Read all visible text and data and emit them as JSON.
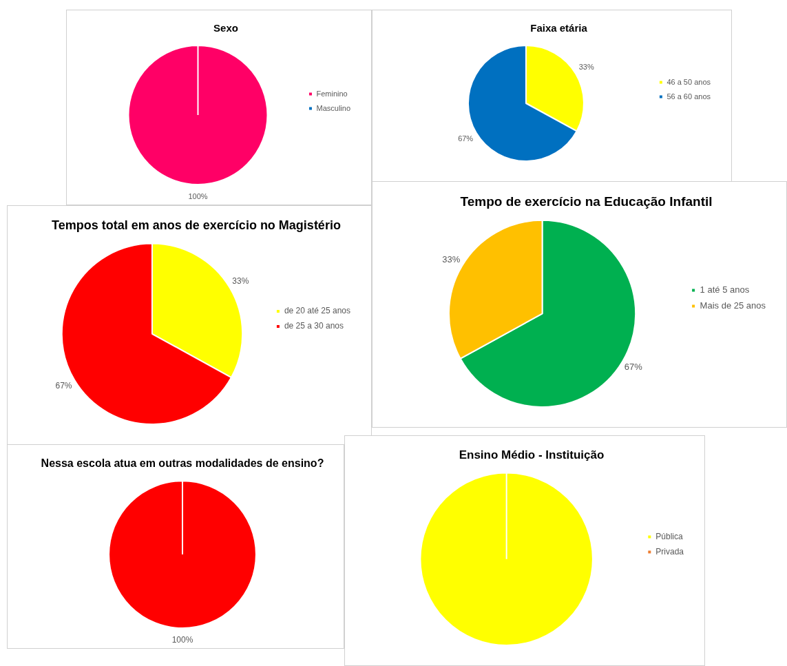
{
  "chart_data": [
    {
      "type": "pie",
      "title": "Sexo",
      "categories": [
        "Feminino",
        "Masculino"
      ],
      "values": [
        100,
        0
      ],
      "colors": [
        "#ff0066",
        "#0070c0"
      ],
      "value_labels": [
        "100%",
        null
      ],
      "legend": "right"
    },
    {
      "type": "pie",
      "title": "Faixa etária",
      "categories": [
        "46 a 50 anos",
        "56 a 60 anos"
      ],
      "values": [
        33,
        67
      ],
      "colors": [
        "#ffff00",
        "#0070c0"
      ],
      "value_labels": [
        "33%",
        "67%"
      ],
      "legend": "right"
    },
    {
      "type": "pie",
      "title": "Tempos total em anos de exercício no Magistério",
      "categories": [
        "de 20 até 25 anos",
        "de 25 a 30 anos"
      ],
      "values": [
        33,
        67
      ],
      "colors": [
        "#ffff00",
        "#ff0000"
      ],
      "value_labels": [
        "33%",
        "67%"
      ],
      "legend": "right"
    },
    {
      "type": "pie",
      "title": "Tempo de exercício na Educação Infantil",
      "categories": [
        "1 até 5 anos",
        "Mais de 25 anos"
      ],
      "values": [
        67,
        33
      ],
      "colors": [
        "#00b050",
        "#ffc000"
      ],
      "value_labels": [
        "67%",
        "33%"
      ],
      "legend": "right"
    },
    {
      "type": "pie",
      "title": "Nessa escola atua em outras modalidades de ensino?",
      "categories": [
        null
      ],
      "values": [
        100
      ],
      "colors": [
        "#ff0000"
      ],
      "value_labels": [
        "100%"
      ]
    },
    {
      "type": "pie",
      "title": "Ensino Médio - Instituição",
      "categories": [
        "Pública",
        "Privada"
      ],
      "values": [
        100,
        0
      ],
      "colors": [
        "#ffff00",
        "#ed7d31"
      ],
      "legend": "right"
    }
  ]
}
